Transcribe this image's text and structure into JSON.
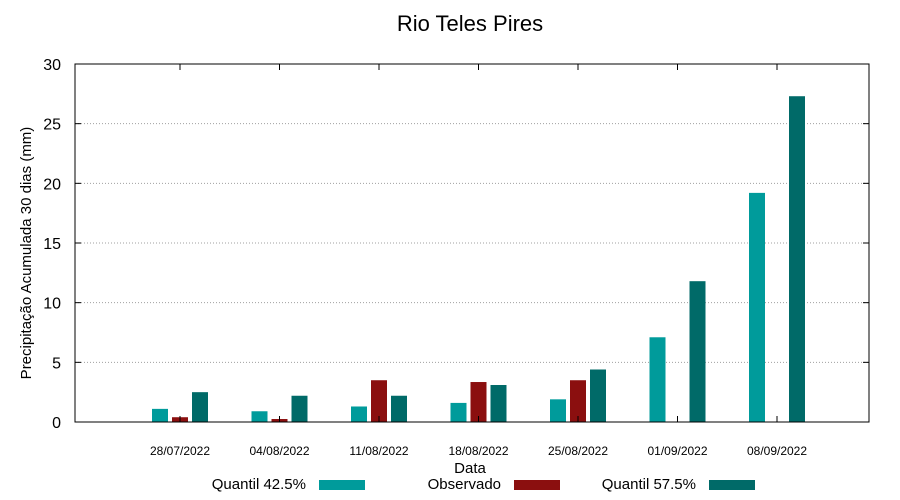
{
  "chart_data": {
    "type": "bar",
    "title": "Rio Teles Pires",
    "xlabel": "Data",
    "ylabel": "Precipitação Acumulada 30 dias (mm)",
    "ylim": [
      0,
      30
    ],
    "yticks": [
      0,
      5,
      10,
      15,
      20,
      25,
      30
    ],
    "categories": [
      "28/07/2022",
      "04/08/2022",
      "11/08/2022",
      "18/08/2022",
      "25/08/2022",
      "01/09/2022",
      "08/09/2022"
    ],
    "grid": true,
    "legend_position": "bottom",
    "series": [
      {
        "name": "Quantil 42.5%",
        "color": "#009b9b",
        "values": [
          1.1,
          0.9,
          1.3,
          1.6,
          1.9,
          7.1,
          19.2
        ]
      },
      {
        "name": "Observado",
        "color": "#8b0f0f",
        "values": [
          0.4,
          0.25,
          3.5,
          3.35,
          3.5,
          null,
          null
        ]
      },
      {
        "name": "Quantil 57.5%",
        "color": "#006a68",
        "values": [
          2.5,
          2.2,
          2.2,
          3.1,
          4.4,
          11.8,
          27.3
        ]
      }
    ]
  }
}
